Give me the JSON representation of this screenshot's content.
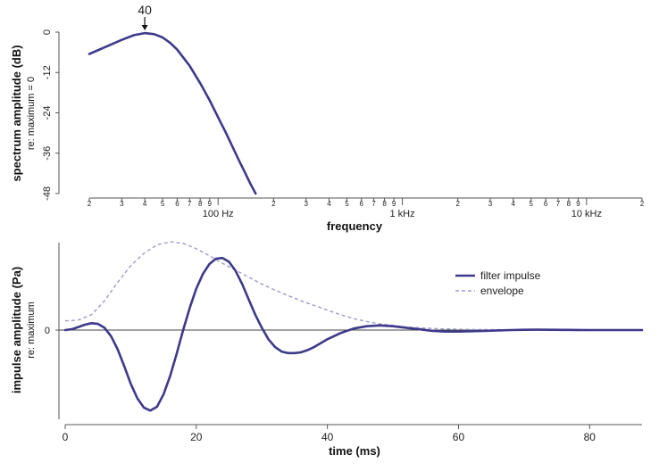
{
  "colors": {
    "primary": "#3d3a8a",
    "envelope": "#9f9cc8",
    "axis": "#555555",
    "zero": "#444444"
  },
  "chart_data": [
    {
      "type": "line",
      "scale_x": "log",
      "xlabel": "frequency",
      "ylabel": "spectrum amplitude (dB)",
      "ylabel_sub": "re: maximum = 0",
      "xlim": [
        20,
        20000
      ],
      "ylim": [
        -48,
        0
      ],
      "y_ticks": [
        0,
        -12,
        -24,
        -36,
        -48
      ],
      "x_minor_ticks": [
        {
          "v": 20,
          "label": "2"
        },
        {
          "v": 30,
          "label": "3"
        },
        {
          "v": 40,
          "label": "4"
        },
        {
          "v": 50,
          "label": "5"
        },
        {
          "v": 60,
          "label": "6"
        },
        {
          "v": 70,
          "label": "7"
        },
        {
          "v": 80,
          "label": "8"
        },
        {
          "v": 90,
          "label": "9"
        },
        {
          "v": 200,
          "label": "2"
        },
        {
          "v": 300,
          "label": "3"
        },
        {
          "v": 400,
          "label": "4"
        },
        {
          "v": 500,
          "label": "5"
        },
        {
          "v": 600,
          "label": "6"
        },
        {
          "v": 700,
          "label": "7"
        },
        {
          "v": 800,
          "label": "8"
        },
        {
          "v": 900,
          "label": "9"
        },
        {
          "v": 2000,
          "label": "2"
        },
        {
          "v": 3000,
          "label": "3"
        },
        {
          "v": 4000,
          "label": "4"
        },
        {
          "v": 5000,
          "label": "5"
        },
        {
          "v": 6000,
          "label": "6"
        },
        {
          "v": 7000,
          "label": "7"
        },
        {
          "v": 8000,
          "label": "8"
        },
        {
          "v": 9000,
          "label": "9"
        },
        {
          "v": 20000,
          "label": "2"
        }
      ],
      "x_major_ticks": [
        {
          "v": 100,
          "label": "100 Hz"
        },
        {
          "v": 1000,
          "label": "1 kHz"
        },
        {
          "v": 10000,
          "label": "10 kHz"
        }
      ],
      "annotation": {
        "x": 40,
        "y": 0,
        "label": "40"
      },
      "series": [
        {
          "x": [
            20,
            25,
            30,
            35,
            40,
            45,
            50,
            55,
            60,
            70,
            80,
            90,
            100,
            110,
            120,
            130,
            140,
            150,
            160
          ],
          "y": [
            -6.5,
            -4.2,
            -2.3,
            -0.9,
            -0.3,
            -0.6,
            -1.6,
            -3.2,
            -5.2,
            -10,
            -15.2,
            -20.3,
            -25.3,
            -29.8,
            -34.2,
            -38.2,
            -41.8,
            -45.2,
            -48
          ]
        }
      ]
    },
    {
      "type": "line",
      "xlabel": "time (ms)",
      "ylabel": "impulse amplitude (Pa)",
      "ylabel_sub": "re: maximum",
      "xlim": [
        -1,
        88
      ],
      "ylim": [
        -1.05,
        1.05
      ],
      "x_ticks": [
        0,
        20,
        40,
        60,
        80
      ],
      "y_ticks": [
        0
      ],
      "legend_position": "top-right",
      "series": [
        {
          "name": "filter impulse",
          "x": [
            0,
            1,
            2,
            3,
            4,
            5,
            6,
            7,
            8,
            9,
            10,
            11,
            12,
            13,
            14,
            15,
            16,
            17,
            18,
            19,
            20,
            21,
            22,
            23,
            24,
            25,
            26,
            27,
            28,
            29,
            30,
            31,
            32,
            33,
            34,
            35,
            36,
            37,
            38,
            39,
            40,
            42,
            44,
            46,
            48,
            50,
            52,
            54,
            56,
            58,
            60,
            62,
            64,
            66,
            68,
            70,
            72,
            74,
            76,
            78,
            80,
            82,
            84,
            86,
            88
          ],
          "y": [
            0.0,
            0.01,
            0.04,
            0.07,
            0.09,
            0.08,
            0.03,
            -0.08,
            -0.25,
            -0.47,
            -0.7,
            -0.89,
            -1.01,
            -1.05,
            -1.0,
            -0.84,
            -0.6,
            -0.31,
            0.0,
            0.29,
            0.54,
            0.73,
            0.86,
            0.93,
            0.94,
            0.89,
            0.77,
            0.6,
            0.4,
            0.2,
            0.03,
            -0.12,
            -0.22,
            -0.28,
            -0.3,
            -0.3,
            -0.29,
            -0.26,
            -0.22,
            -0.17,
            -0.12,
            -0.04,
            0.02,
            0.05,
            0.06,
            0.05,
            0.03,
            0.01,
            -0.01,
            -0.02,
            -0.02,
            -0.015,
            -0.01,
            -0.005,
            0.0,
            0.003,
            0.005,
            0.004,
            0.002,
            0.001,
            0.0,
            0.0,
            0.0,
            0.0,
            0.0
          ]
        },
        {
          "name": "envelope",
          "x": [
            0,
            2,
            4,
            6,
            8,
            10,
            12,
            14,
            16,
            18,
            20,
            22,
            24,
            26,
            28,
            30,
            32,
            34,
            36,
            38,
            40,
            42,
            44,
            46,
            48,
            50,
            52,
            54,
            56,
            58,
            60,
            64,
            68,
            72,
            76,
            80,
            84,
            88
          ],
          "y": [
            0.12,
            0.13,
            0.2,
            0.38,
            0.62,
            0.84,
            1.0,
            1.11,
            1.15,
            1.13,
            1.06,
            0.97,
            0.87,
            0.78,
            0.69,
            0.6,
            0.52,
            0.45,
            0.38,
            0.32,
            0.26,
            0.2,
            0.15,
            0.11,
            0.08,
            0.06,
            0.04,
            0.03,
            0.02,
            0.015,
            0.01,
            0.006,
            0.004,
            0.002,
            0.001,
            0.0,
            0.0,
            0.0
          ]
        }
      ]
    }
  ]
}
